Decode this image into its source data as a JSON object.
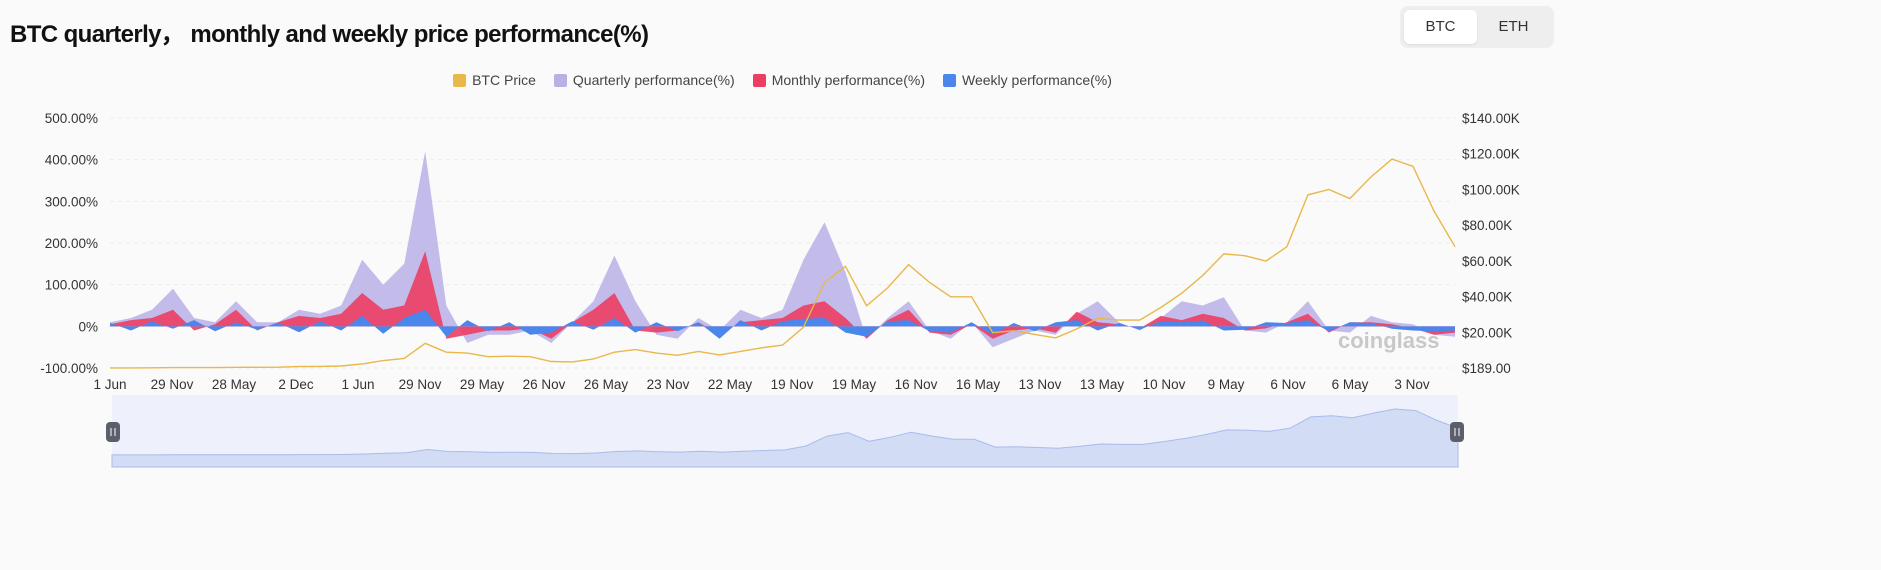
{
  "title": "BTC quarterly， monthly and weekly price performance(%)",
  "toggle": {
    "options": [
      "BTC",
      "ETH"
    ],
    "selected": "BTC"
  },
  "legend": [
    {
      "label": "BTC Price",
      "color": "#e8b84a"
    },
    {
      "label": "Quarterly performance(%)",
      "color": "#b9b0e6"
    },
    {
      "label": "Monthly performance(%)",
      "color": "#ec3d63"
    },
    {
      "label": "Weekly performance(%)",
      "color": "#4a86ec"
    }
  ],
  "watermark": "coinglass",
  "chart_data": {
    "type": "line",
    "title": "BTC quarterly， monthly and weekly price performance(%)",
    "x_start": "2015-06",
    "x_step_months": 2,
    "x_tick_labels": [
      "1 Jun",
      "29 Nov",
      "28 May",
      "2 Dec",
      "1 Jun",
      "29 Nov",
      "29 May",
      "26 Nov",
      "26 May",
      "23 Nov",
      "22 May",
      "19 Nov",
      "19 May",
      "16 Nov",
      "16 May",
      "13 Nov",
      "13 May",
      "10 Nov",
      "9 May",
      "6 Nov",
      "6 May",
      "3 Nov"
    ],
    "y_left": {
      "ticks": [
        "500.00%",
        "400.00%",
        "300.00%",
        "200.00%",
        "100.00%",
        "0%",
        "-100.00%"
      ],
      "range": [
        -100,
        500
      ]
    },
    "y_right": {
      "ticks": [
        "$140.00K",
        "$120.00K",
        "$100.00K",
        "$80.00K",
        "$60.00K",
        "$40.00K",
        "$20.00K",
        "$189.00"
      ],
      "range_k": [
        0.189,
        140
      ]
    },
    "grid": true,
    "legend_position": "top-center",
    "series": [
      {
        "name": "Quarterly performance(%)",
        "type": "area",
        "values": [
          10,
          20,
          40,
          90,
          20,
          10,
          60,
          10,
          10,
          40,
          30,
          50,
          160,
          100,
          150,
          420,
          50,
          -40,
          -20,
          -20,
          -10,
          -40,
          10,
          60,
          170,
          60,
          -20,
          -30,
          20,
          -10,
          40,
          20,
          40,
          160,
          250,
          130,
          -30,
          20,
          60,
          -10,
          -30,
          10,
          -50,
          -30,
          -10,
          -20,
          30,
          60,
          10,
          -10,
          20,
          60,
          50,
          70,
          -10,
          -15,
          10,
          60,
          -10,
          -15,
          25,
          10,
          5,
          -20,
          -25
        ]
      },
      {
        "name": "Monthly performance(%)",
        "type": "area",
        "values": [
          5,
          15,
          20,
          40,
          -10,
          5,
          40,
          -10,
          10,
          25,
          20,
          30,
          80,
          40,
          50,
          180,
          -30,
          -20,
          -10,
          -10,
          -5,
          -30,
          10,
          40,
          80,
          -10,
          -15,
          -10,
          10,
          -20,
          10,
          15,
          20,
          50,
          60,
          20,
          -30,
          15,
          40,
          -15,
          -20,
          5,
          -30,
          -10,
          -5,
          -15,
          35,
          10,
          5,
          -5,
          25,
          15,
          30,
          20,
          -10,
          -5,
          10,
          30,
          -15,
          10,
          10,
          5,
          -5,
          -20,
          -15
        ]
      },
      {
        "name": "Weekly performance(%)",
        "type": "area",
        "values": [
          8,
          -10,
          12,
          -6,
          15,
          -12,
          10,
          -8,
          9,
          -14,
          12,
          -10,
          25,
          -18,
          20,
          40,
          -25,
          15,
          -12,
          10,
          -20,
          -15,
          12,
          -8,
          20,
          -15,
          10,
          -12,
          10,
          -30,
          15,
          -10,
          12,
          18,
          20,
          -15,
          -25,
          12,
          15,
          -12,
          -15,
          10,
          -20,
          8,
          -12,
          10,
          15,
          -10,
          8,
          -8,
          12,
          10,
          14,
          -10,
          -8,
          10,
          8,
          15,
          -12,
          10,
          8,
          -6,
          -10,
          -12,
          -10
        ]
      },
      {
        "name": "BTC Price",
        "type": "line",
        "axis": "right",
        "unit": "K USD",
        "values": [
          0.23,
          0.23,
          0.3,
          0.43,
          0.4,
          0.43,
          0.6,
          0.58,
          0.65,
          0.95,
          1.1,
          1.3,
          2.5,
          4.3,
          5.5,
          14,
          9,
          8.5,
          6.5,
          6.8,
          6.5,
          3.8,
          3.6,
          5.2,
          9,
          10.5,
          8.5,
          7.3,
          9.5,
          7.5,
          9.5,
          11.5,
          13,
          23,
          48,
          57,
          35,
          45,
          58,
          48,
          40,
          40,
          20,
          21,
          19,
          17,
          22,
          28,
          27,
          27,
          34,
          42,
          52,
          64,
          63,
          60,
          68,
          97,
          100,
          95,
          107,
          117,
          113,
          88,
          68
        ]
      }
    ]
  }
}
